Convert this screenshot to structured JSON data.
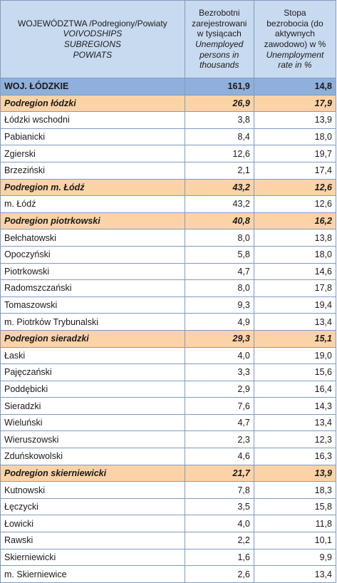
{
  "header": {
    "col1_pl": "WOJEWÓDZTWA /Podregiony/Powiaty",
    "col1_en": [
      "VOIVODSHIPS",
      "SUBREGIONS",
      "POWIATS"
    ],
    "col2_pl": [
      "Bezrobotni",
      "zarejestrowani",
      "w tysiącach"
    ],
    "col2_en": [
      "Unemployed",
      "persons in",
      "thousands"
    ],
    "col3_pl": [
      "Stopa",
      "bezrobocia  (do",
      "aktywnych",
      "zawodowo) w %"
    ],
    "col3_en": [
      "Unemployment",
      "rate in  %"
    ]
  },
  "rows": [
    {
      "type": "woj",
      "name": "WOJ. ŁÓDZKIE",
      "persons": "161,9",
      "rate": "14,8"
    },
    {
      "type": "sub",
      "name": "Podregion łódzki",
      "persons": "26,9",
      "rate": "17,9"
    },
    {
      "type": "pow",
      "name": "Łódzki wschodni",
      "persons": "3,8",
      "rate": "13,9"
    },
    {
      "type": "pow",
      "name": "Pabianicki",
      "persons": "8,4",
      "rate": "18,0"
    },
    {
      "type": "pow",
      "name": "Zgierski",
      "persons": "12,6",
      "rate": "19,7"
    },
    {
      "type": "pow",
      "name": "Brzeziński",
      "persons": "2,1",
      "rate": "17,4"
    },
    {
      "type": "sub",
      "name": "Podregion m. Łódź",
      "persons": "43,2",
      "rate": "12,6"
    },
    {
      "type": "pow",
      "name": "m. Łódź",
      "persons": "43,2",
      "rate": "12,6"
    },
    {
      "type": "sub",
      "name": "Podregion piotrkowski",
      "persons": "40,8",
      "rate": "16,2"
    },
    {
      "type": "pow",
      "name": "Bełchatowski",
      "persons": "8,0",
      "rate": "13,8"
    },
    {
      "type": "pow",
      "name": "Opoczyński",
      "persons": "5,8",
      "rate": "18,0"
    },
    {
      "type": "pow",
      "name": "Piotrkowski",
      "persons": "4,7",
      "rate": "14,6"
    },
    {
      "type": "pow",
      "name": "Radomszczański",
      "persons": "8,0",
      "rate": "17,8"
    },
    {
      "type": "pow",
      "name": "Tomaszowski",
      "persons": "9,3",
      "rate": "19,4"
    },
    {
      "type": "pow",
      "name": "m. Piotrków Trybunalski",
      "persons": "4,9",
      "rate": "13,4"
    },
    {
      "type": "sub",
      "name": "Podregion sieradzki",
      "persons": "29,3",
      "rate": "15,1"
    },
    {
      "type": "pow",
      "name": "Łaski",
      "persons": "4,0",
      "rate": "19,0"
    },
    {
      "type": "pow",
      "name": "Pajęczański",
      "persons": "3,3",
      "rate": "15,6"
    },
    {
      "type": "pow",
      "name": "Poddębicki",
      "persons": "2,9",
      "rate": "16,4"
    },
    {
      "type": "pow",
      "name": "Sieradzki",
      "persons": "7,6",
      "rate": "14,3"
    },
    {
      "type": "pow",
      "name": "Wieluński",
      "persons": "4,7",
      "rate": "13,4"
    },
    {
      "type": "pow",
      "name": "Wieruszowski",
      "persons": "2,3",
      "rate": "12,3"
    },
    {
      "type": "pow",
      "name": "Zduńskowolski",
      "persons": "4,6",
      "rate": "16,3"
    },
    {
      "type": "sub",
      "name": "Podregion skierniewicki",
      "persons": "21,7",
      "rate": "13,9"
    },
    {
      "type": "pow",
      "name": "Kutnowski",
      "persons": "7,8",
      "rate": "18,3"
    },
    {
      "type": "pow",
      "name": "Łęczycki",
      "persons": "3,5",
      "rate": "15,8"
    },
    {
      "type": "pow",
      "name": "Łowicki",
      "persons": "4,0",
      "rate": "11,8"
    },
    {
      "type": "pow",
      "name": "Rawski",
      "persons": "2,2",
      "rate": "10,1"
    },
    {
      "type": "pow",
      "name": "Skierniewicki",
      "persons": "1,6",
      "rate": "9,9"
    },
    {
      "type": "pow",
      "name": "m. Skierniewice",
      "persons": "2,6",
      "rate": "13,4"
    }
  ]
}
